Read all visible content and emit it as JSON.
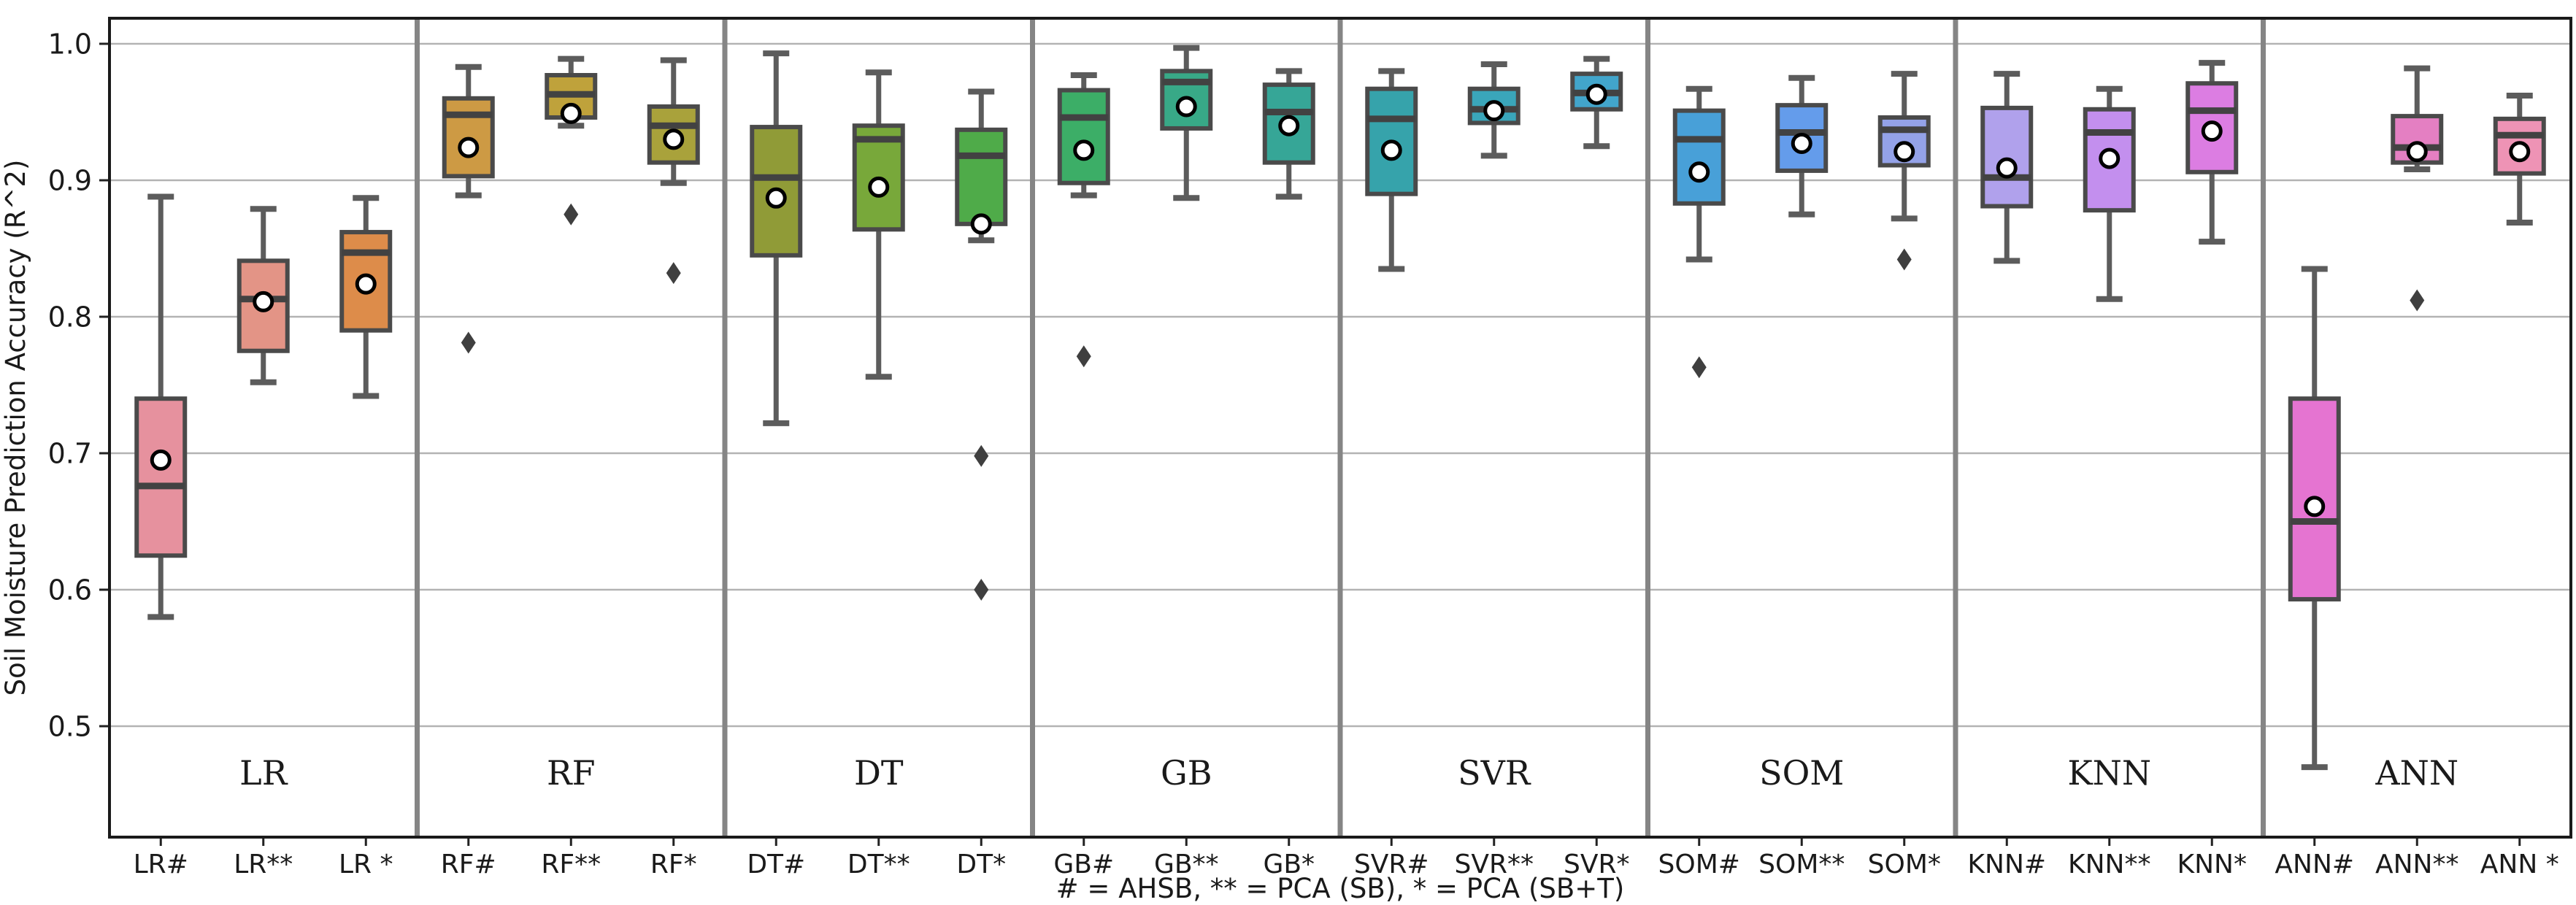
{
  "chart_data": {
    "type": "boxplot",
    "title": "",
    "ylabel": "Soil Moisture Prediction Accuracy (R^2)",
    "xlabel": "# = AHSB, ** = PCA (SB),  * = PCA (SB+T)",
    "ylim": [
      0.42,
      1.02
    ],
    "yticks": [
      0.5,
      0.6,
      0.7,
      0.8,
      0.9,
      1.0
    ],
    "grid": true,
    "gridline_color": "#b3b3b3",
    "separator_color": "#858585",
    "box_edge_color": "#4a4a4a",
    "whisker_color": "#5c5c5c",
    "median_color": "#424242",
    "mean_marker": {
      "shape": "circle",
      "fill": "#ffffff",
      "edge": "#000000"
    },
    "outlier_marker": {
      "shape": "diamond",
      "fill": "#3f3f3f"
    },
    "groups": [
      {
        "name": "LR",
        "boxes": [
          {
            "label": "LR#",
            "color": "#e6919e",
            "whislo": 0.58,
            "q1": 0.625,
            "med": 0.676,
            "q3": 0.74,
            "whishi": 0.888,
            "mean": 0.695,
            "fliers": []
          },
          {
            "label": "LR**",
            "color": "#e39486",
            "whislo": 0.752,
            "q1": 0.775,
            "med": 0.813,
            "q3": 0.841,
            "whishi": 0.879,
            "mean": 0.811,
            "fliers": []
          },
          {
            "label": "LR *",
            "color": "#dd8c4a",
            "whislo": 0.742,
            "q1": 0.79,
            "med": 0.847,
            "q3": 0.862,
            "whishi": 0.887,
            "mean": 0.824,
            "fliers": []
          }
        ]
      },
      {
        "name": "RF",
        "boxes": [
          {
            "label": "RF#",
            "color": "#cd9a44",
            "whislo": 0.889,
            "q1": 0.903,
            "med": 0.948,
            "q3": 0.96,
            "whishi": 0.983,
            "mean": 0.924,
            "fliers": [
              0.781
            ]
          },
          {
            "label": "RF**",
            "color": "#bfa23b",
            "whislo": 0.94,
            "q1": 0.946,
            "med": 0.963,
            "q3": 0.977,
            "whishi": 0.989,
            "mean": 0.949,
            "fliers": [
              0.875
            ]
          },
          {
            "label": "RF*",
            "color": "#a9a23b",
            "whislo": 0.898,
            "q1": 0.913,
            "med": 0.94,
            "q3": 0.954,
            "whishi": 0.988,
            "mean": 0.93,
            "fliers": [
              0.832
            ]
          }
        ]
      },
      {
        "name": "DT",
        "boxes": [
          {
            "label": "DT#",
            "color": "#909b37",
            "whislo": 0.722,
            "q1": 0.845,
            "med": 0.902,
            "q3": 0.939,
            "whishi": 0.993,
            "mean": 0.887,
            "fliers": []
          },
          {
            "label": "DT**",
            "color": "#78a83a",
            "whislo": 0.756,
            "q1": 0.864,
            "med": 0.93,
            "q3": 0.94,
            "whishi": 0.979,
            "mean": 0.895,
            "fliers": []
          },
          {
            "label": "DT*",
            "color": "#4fab49",
            "whislo": 0.856,
            "q1": 0.868,
            "med": 0.918,
            "q3": 0.937,
            "whishi": 0.965,
            "mean": 0.868,
            "fliers": [
              0.698,
              0.6
            ]
          }
        ]
      },
      {
        "name": "GB",
        "boxes": [
          {
            "label": "GB#",
            "color": "#3cae67",
            "whislo": 0.889,
            "q1": 0.898,
            "med": 0.946,
            "q3": 0.966,
            "whishi": 0.977,
            "mean": 0.922,
            "fliers": [
              0.771
            ]
          },
          {
            "label": "GB**",
            "color": "#38a987",
            "whislo": 0.887,
            "q1": 0.938,
            "med": 0.972,
            "q3": 0.98,
            "whishi": 0.997,
            "mean": 0.954,
            "fliers": []
          },
          {
            "label": "GB*",
            "color": "#36a697",
            "whislo": 0.888,
            "q1": 0.913,
            "med": 0.95,
            "q3": 0.97,
            "whishi": 0.98,
            "mean": 0.94,
            "fliers": []
          }
        ]
      },
      {
        "name": "SVR",
        "boxes": [
          {
            "label": "SVR#",
            "color": "#36a3ab",
            "whislo": 0.835,
            "q1": 0.89,
            "med": 0.945,
            "q3": 0.967,
            "whishi": 0.98,
            "mean": 0.922,
            "fliers": []
          },
          {
            "label": "SVR**",
            "color": "#3aa6ba",
            "whislo": 0.918,
            "q1": 0.942,
            "med": 0.952,
            "q3": 0.967,
            "whishi": 0.985,
            "mean": 0.951,
            "fliers": []
          },
          {
            "label": "SVR*",
            "color": "#42a5cb",
            "whislo": 0.925,
            "q1": 0.952,
            "med": 0.964,
            "q3": 0.978,
            "whishi": 0.989,
            "mean": 0.963,
            "fliers": []
          }
        ]
      },
      {
        "name": "SOM",
        "boxes": [
          {
            "label": "SOM#",
            "color": "#48a0d8",
            "whislo": 0.842,
            "q1": 0.883,
            "med": 0.93,
            "q3": 0.951,
            "whishi": 0.967,
            "mean": 0.906,
            "fliers": [
              0.763
            ]
          },
          {
            "label": "SOM**",
            "color": "#649ceb",
            "whislo": 0.875,
            "q1": 0.907,
            "med": 0.935,
            "q3": 0.955,
            "whishi": 0.975,
            "mean": 0.927,
            "fliers": []
          },
          {
            "label": "SOM*",
            "color": "#94a2e8",
            "whislo": 0.872,
            "q1": 0.911,
            "med": 0.937,
            "q3": 0.946,
            "whishi": 0.978,
            "mean": 0.921,
            "fliers": [
              0.842
            ]
          }
        ]
      },
      {
        "name": "KNN",
        "boxes": [
          {
            "label": "KNN#",
            "color": "#b0a1ec",
            "whislo": 0.841,
            "q1": 0.881,
            "med": 0.902,
            "q3": 0.953,
            "whishi": 0.978,
            "mean": 0.909,
            "fliers": []
          },
          {
            "label": "KNN**",
            "color": "#c38fee",
            "whislo": 0.813,
            "q1": 0.878,
            "med": 0.935,
            "q3": 0.952,
            "whishi": 0.967,
            "mean": 0.916,
            "fliers": []
          },
          {
            "label": "KNN*",
            "color": "#dc7de2",
            "whislo": 0.855,
            "q1": 0.906,
            "med": 0.951,
            "q3": 0.971,
            "whishi": 0.986,
            "mean": 0.936,
            "fliers": []
          }
        ]
      },
      {
        "name": "ANN",
        "boxes": [
          {
            "label": "ANN#",
            "color": "#e574d1",
            "whislo": 0.47,
            "q1": 0.593,
            "med": 0.65,
            "q3": 0.74,
            "whishi": 0.835,
            "mean": 0.661,
            "fliers": []
          },
          {
            "label": "ANN**",
            "color": "#e47fc2",
            "whislo": 0.908,
            "q1": 0.913,
            "med": 0.924,
            "q3": 0.947,
            "whishi": 0.982,
            "mean": 0.921,
            "fliers": [
              0.812
            ]
          },
          {
            "label": "ANN *",
            "color": "#ee93b5",
            "whislo": 0.869,
            "q1": 0.905,
            "med": 0.933,
            "q3": 0.945,
            "whishi": 0.962,
            "mean": 0.921,
            "fliers": []
          }
        ]
      }
    ]
  }
}
